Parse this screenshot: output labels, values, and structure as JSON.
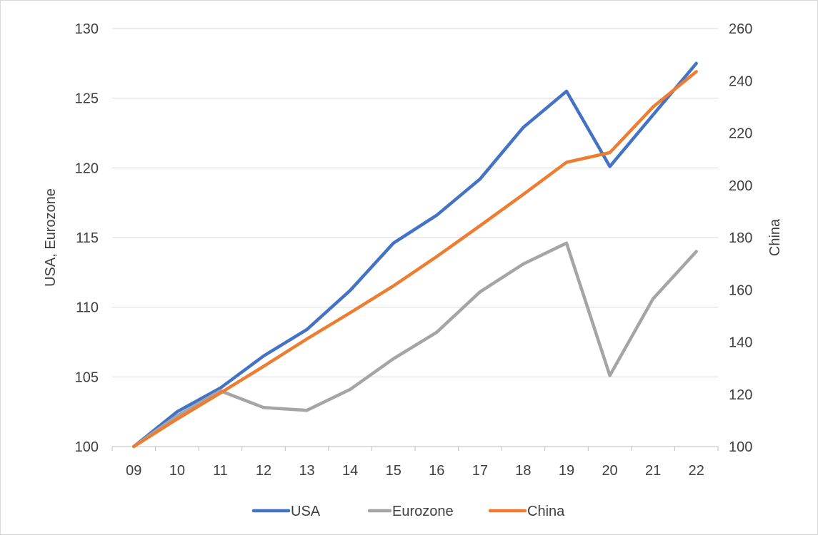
{
  "chart_data": {
    "type": "line",
    "categories": [
      "09",
      "10",
      "11",
      "12",
      "13",
      "14",
      "15",
      "16",
      "17",
      "18",
      "19",
      "20",
      "21",
      "22"
    ],
    "y_left": {
      "label": "USA, Eurozone",
      "range": [
        100,
        130
      ],
      "ticks": [
        "100",
        "105",
        "110",
        "115",
        "120",
        "125",
        "130"
      ]
    },
    "y_right": {
      "label": "China",
      "range": [
        100,
        260
      ],
      "ticks": [
        "100",
        "120",
        "140",
        "160",
        "180",
        "200",
        "220",
        "240",
        "260"
      ]
    },
    "grid": true,
    "legend_position": "bottom",
    "series": [
      {
        "name": "USA",
        "axis": "left",
        "color": "#4472c4",
        "values": [
          100,
          102.5,
          104.2,
          106.5,
          108.4,
          111.2,
          114.6,
          116.6,
          119.2,
          122.9,
          125.5,
          120.1,
          123.8,
          127.5
        ]
      },
      {
        "name": "Eurozone",
        "axis": "left",
        "color": "#a5a5a5",
        "values": [
          100,
          102.2,
          104.0,
          102.8,
          102.6,
          104.1,
          106.3,
          108.2,
          111.1,
          113.1,
          114.6,
          105.1,
          110.6,
          114.0
        ]
      },
      {
        "name": "China",
        "axis": "right",
        "color": "#ed7d31",
        "values": [
          100,
          110.5,
          120.5,
          130.7,
          141.2,
          151.2,
          161.5,
          172.7,
          184.5,
          196.5,
          208.8,
          212.5,
          230.0,
          243.5
        ]
      }
    ]
  }
}
